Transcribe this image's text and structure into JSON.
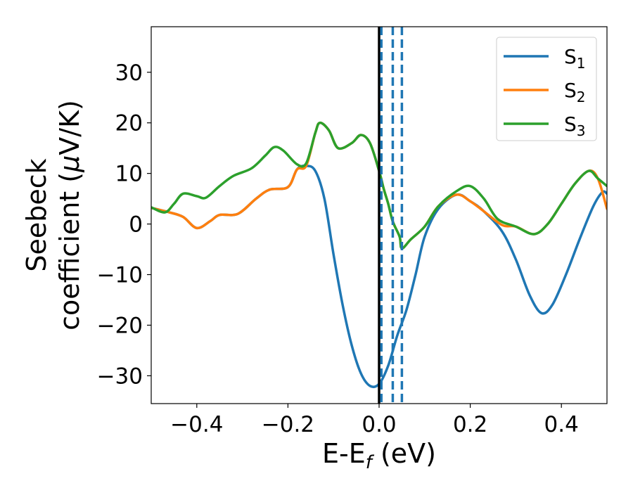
{
  "chart_data": {
    "type": "line",
    "title": "",
    "xlabel": "E-E",
    "xlabel_sub": "f",
    "xlabel_unit": " (eV)",
    "ylabel_line1": "Seebeck",
    "ylabel_line2_prefix": "coefficient  (",
    "ylabel_mu": "μ",
    "ylabel_line2_suffix": "V/K)",
    "xlim": [
      -0.5,
      0.5
    ],
    "ylim": [
      -35.5,
      39
    ],
    "xticks": [
      -0.4,
      -0.2,
      0.0,
      0.2,
      0.4
    ],
    "xtick_labels": [
      "−0.4",
      "−0.2",
      "0.0",
      "0.2",
      "0.4"
    ],
    "yticks": [
      -30,
      -20,
      -10,
      0,
      10,
      20,
      30
    ],
    "ytick_labels": [
      "−30",
      "−20",
      "−10",
      "0",
      "10",
      "20",
      "30"
    ],
    "grid": false,
    "legend_position": "top-right",
    "series": [
      {
        "name": "S",
        "sub": "1",
        "color": "#1f77b4",
        "points": [
          [
            -0.5,
            3.2
          ],
          [
            -0.46,
            2.3
          ],
          [
            -0.43,
            1.4
          ],
          [
            -0.4,
            -0.8
          ],
          [
            -0.37,
            0.6
          ],
          [
            -0.35,
            1.8
          ],
          [
            -0.31,
            2.0
          ],
          [
            -0.27,
            5.0
          ],
          [
            -0.24,
            6.8
          ],
          [
            -0.2,
            7.3
          ],
          [
            -0.18,
            10.8
          ],
          [
            -0.16,
            11.5
          ],
          [
            -0.14,
            10.5
          ],
          [
            -0.12,
            5.0
          ],
          [
            -0.1,
            -6.0
          ],
          [
            -0.08,
            -16.0
          ],
          [
            -0.06,
            -24.0
          ],
          [
            -0.04,
            -29.5
          ],
          [
            -0.02,
            -32.0
          ],
          [
            0.0,
            -31.6
          ],
          [
            0.02,
            -28.0
          ],
          [
            0.04,
            -22.0
          ],
          [
            0.06,
            -17.0
          ],
          [
            0.08,
            -10.0
          ],
          [
            0.1,
            -2.5
          ],
          [
            0.13,
            3.0
          ],
          [
            0.17,
            5.8
          ],
          [
            0.2,
            4.5
          ],
          [
            0.23,
            2.5
          ],
          [
            0.27,
            -1.5
          ],
          [
            0.3,
            -7.0
          ],
          [
            0.33,
            -14.0
          ],
          [
            0.356,
            -17.6
          ],
          [
            0.38,
            -16.0
          ],
          [
            0.41,
            -10.0
          ],
          [
            0.44,
            -3.0
          ],
          [
            0.47,
            3.5
          ],
          [
            0.49,
            6.3
          ],
          [
            0.5,
            6.0
          ]
        ]
      },
      {
        "name": "S",
        "sub": "2",
        "color": "#ff7f0e",
        "points": [
          [
            -0.5,
            3.2
          ],
          [
            -0.46,
            2.3
          ],
          [
            -0.43,
            1.4
          ],
          [
            -0.4,
            -0.8
          ],
          [
            -0.37,
            0.6
          ],
          [
            -0.35,
            1.8
          ],
          [
            -0.31,
            2.0
          ],
          [
            -0.27,
            5.0
          ],
          [
            -0.24,
            6.8
          ],
          [
            -0.2,
            7.3
          ],
          [
            -0.18,
            10.8
          ],
          [
            -0.16,
            11.5
          ],
          [
            -0.14,
            18.0
          ],
          [
            -0.13,
            20.0
          ],
          [
            -0.11,
            18.5
          ],
          [
            -0.09,
            15.0
          ],
          [
            -0.06,
            16.0
          ],
          [
            -0.04,
            17.6
          ],
          [
            -0.02,
            16.0
          ],
          [
            0.0,
            10.5
          ],
          [
            0.01,
            7.0
          ],
          [
            0.02,
            4.0
          ],
          [
            0.03,
            0.5
          ],
          [
            0.045,
            -2.5
          ],
          [
            0.05,
            -4.8
          ],
          [
            0.07,
            -3.0
          ],
          [
            0.1,
            -0.5
          ],
          [
            0.13,
            3.5
          ],
          [
            0.17,
            5.8
          ],
          [
            0.2,
            4.5
          ],
          [
            0.23,
            2.5
          ],
          [
            0.27,
            -0.2
          ],
          [
            0.3,
            -0.5
          ],
          [
            0.34,
            -2.0
          ],
          [
            0.37,
            0.0
          ],
          [
            0.4,
            4.0
          ],
          [
            0.43,
            8.0
          ],
          [
            0.46,
            10.5
          ],
          [
            0.48,
            9.0
          ],
          [
            0.5,
            3.0
          ]
        ]
      },
      {
        "name": "S",
        "sub": "3",
        "color": "#2ca02c",
        "points": [
          [
            -0.5,
            3.3
          ],
          [
            -0.47,
            2.3
          ],
          [
            -0.45,
            4.0
          ],
          [
            -0.43,
            6.0
          ],
          [
            -0.4,
            5.5
          ],
          [
            -0.38,
            5.2
          ],
          [
            -0.35,
            7.5
          ],
          [
            -0.32,
            9.5
          ],
          [
            -0.28,
            11.0
          ],
          [
            -0.25,
            13.5
          ],
          [
            -0.23,
            15.2
          ],
          [
            -0.21,
            14.5
          ],
          [
            -0.18,
            11.8
          ],
          [
            -0.16,
            12.0
          ],
          [
            -0.14,
            18.0
          ],
          [
            -0.13,
            20.0
          ],
          [
            -0.11,
            18.5
          ],
          [
            -0.09,
            15.0
          ],
          [
            -0.06,
            16.0
          ],
          [
            -0.04,
            17.6
          ],
          [
            -0.02,
            16.0
          ],
          [
            0.0,
            10.5
          ],
          [
            0.01,
            7.0
          ],
          [
            0.02,
            4.0
          ],
          [
            0.03,
            0.5
          ],
          [
            0.045,
            -2.5
          ],
          [
            0.05,
            -4.8
          ],
          [
            0.07,
            -3.0
          ],
          [
            0.1,
            -0.5
          ],
          [
            0.13,
            3.5
          ],
          [
            0.17,
            6.5
          ],
          [
            0.2,
            7.5
          ],
          [
            0.23,
            5.0
          ],
          [
            0.26,
            1.0
          ],
          [
            0.3,
            -0.5
          ],
          [
            0.34,
            -2.0
          ],
          [
            0.37,
            0.0
          ],
          [
            0.4,
            4.0
          ],
          [
            0.43,
            8.0
          ],
          [
            0.46,
            10.5
          ],
          [
            0.48,
            9.0
          ],
          [
            0.5,
            7.5
          ]
        ]
      }
    ],
    "vertical_lines": [
      {
        "x": 0.0,
        "style": "solid",
        "color": "#000000"
      },
      {
        "x": 0.005,
        "style": "dashed",
        "color": "#1f77b4"
      },
      {
        "x": 0.03,
        "style": "dashed",
        "color": "#1f77b4"
      },
      {
        "x": 0.05,
        "style": "dashed",
        "color": "#1f77b4"
      }
    ]
  }
}
